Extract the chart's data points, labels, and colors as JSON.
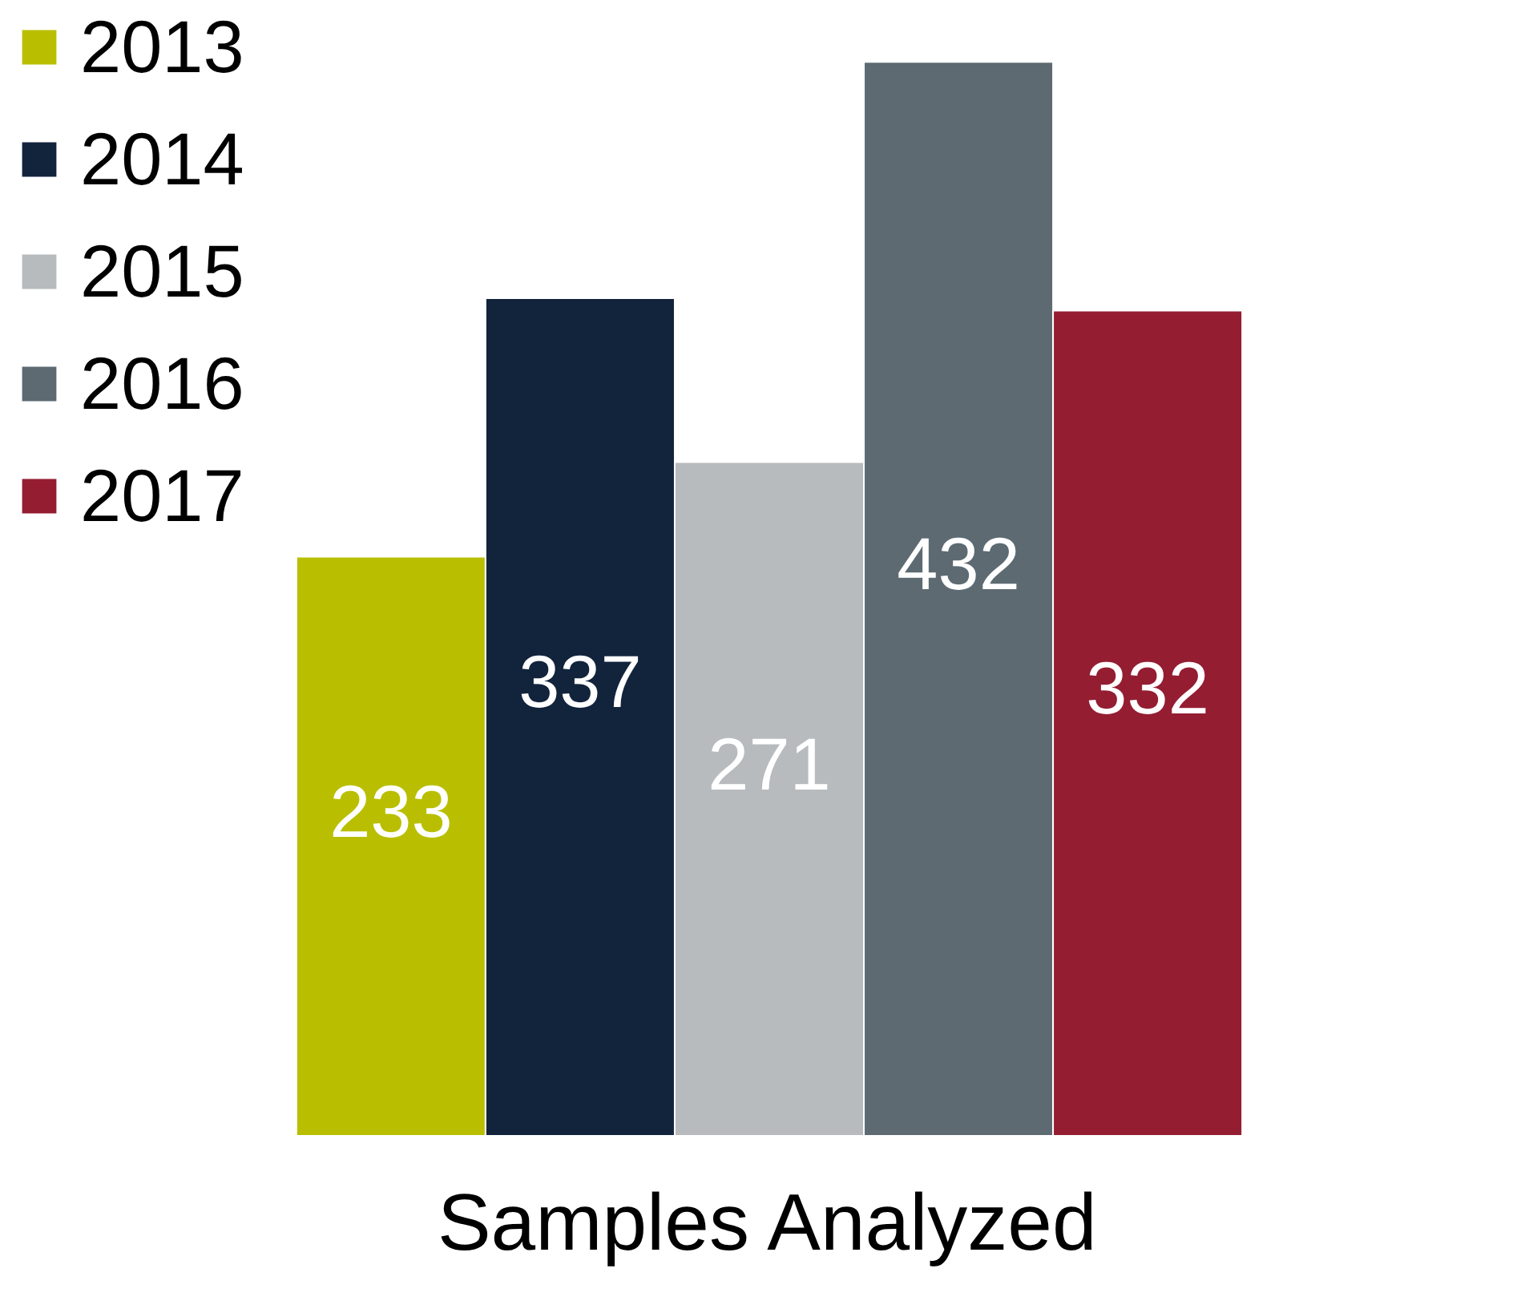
{
  "chart_data": {
    "type": "bar",
    "categories": [
      null
    ],
    "xlabel": "Samples Analyzed",
    "series": [
      {
        "name": "2013",
        "color": "#b9bf00",
        "values": [
          233
        ]
      },
      {
        "name": "2014",
        "color": "#12233c",
        "values": [
          337
        ]
      },
      {
        "name": "2015",
        "color": "#b7bbbe",
        "values": [
          271
        ]
      },
      {
        "name": "2016",
        "color": "#5d6a72",
        "values": [
          432
        ]
      },
      {
        "name": "2017",
        "color": "#941d32",
        "values": [
          332
        ]
      }
    ],
    "data_labels": true,
    "legend": "top left",
    "grid": false,
    "tick_labels": false
  }
}
